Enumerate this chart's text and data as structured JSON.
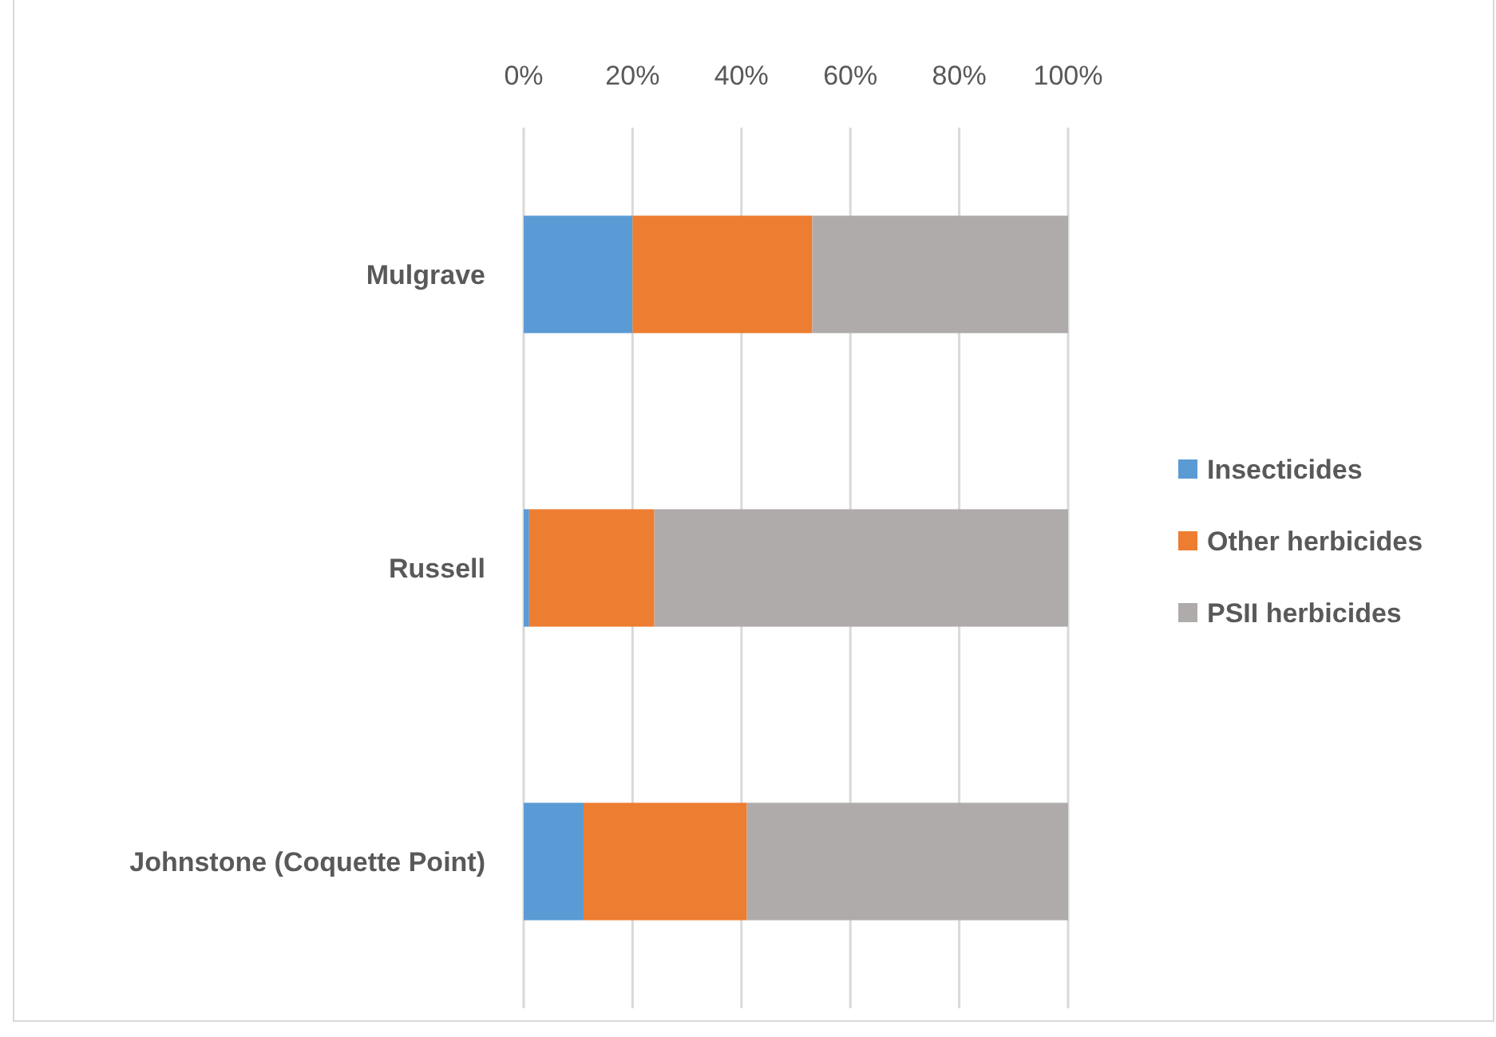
{
  "chart_data": {
    "type": "bar",
    "orientation": "horizontal",
    "stacked": true,
    "categories": [
      "Mulgrave",
      "Russell",
      "Johnstone (Coquette Point)"
    ],
    "series": [
      {
        "name": "Insecticides",
        "color": "#5b9bd5",
        "values": [
          20,
          1,
          11
        ]
      },
      {
        "name": "Other herbicides",
        "color": "#ed7d31",
        "values": [
          33,
          23,
          30
        ]
      },
      {
        "name": "PSII herbicides",
        "color": "#afabab",
        "values": [
          47,
          76,
          59
        ]
      }
    ],
    "xlim": [
      0,
      100
    ],
    "xticks": [
      {
        "value": 0,
        "label": "0%"
      },
      {
        "value": 20,
        "label": "20%"
      },
      {
        "value": 40,
        "label": "40%"
      },
      {
        "value": 60,
        "label": "60%"
      },
      {
        "value": 80,
        "label": "80%"
      },
      {
        "value": 100,
        "label": "100%"
      }
    ],
    "grid": "x",
    "legend": "right"
  }
}
